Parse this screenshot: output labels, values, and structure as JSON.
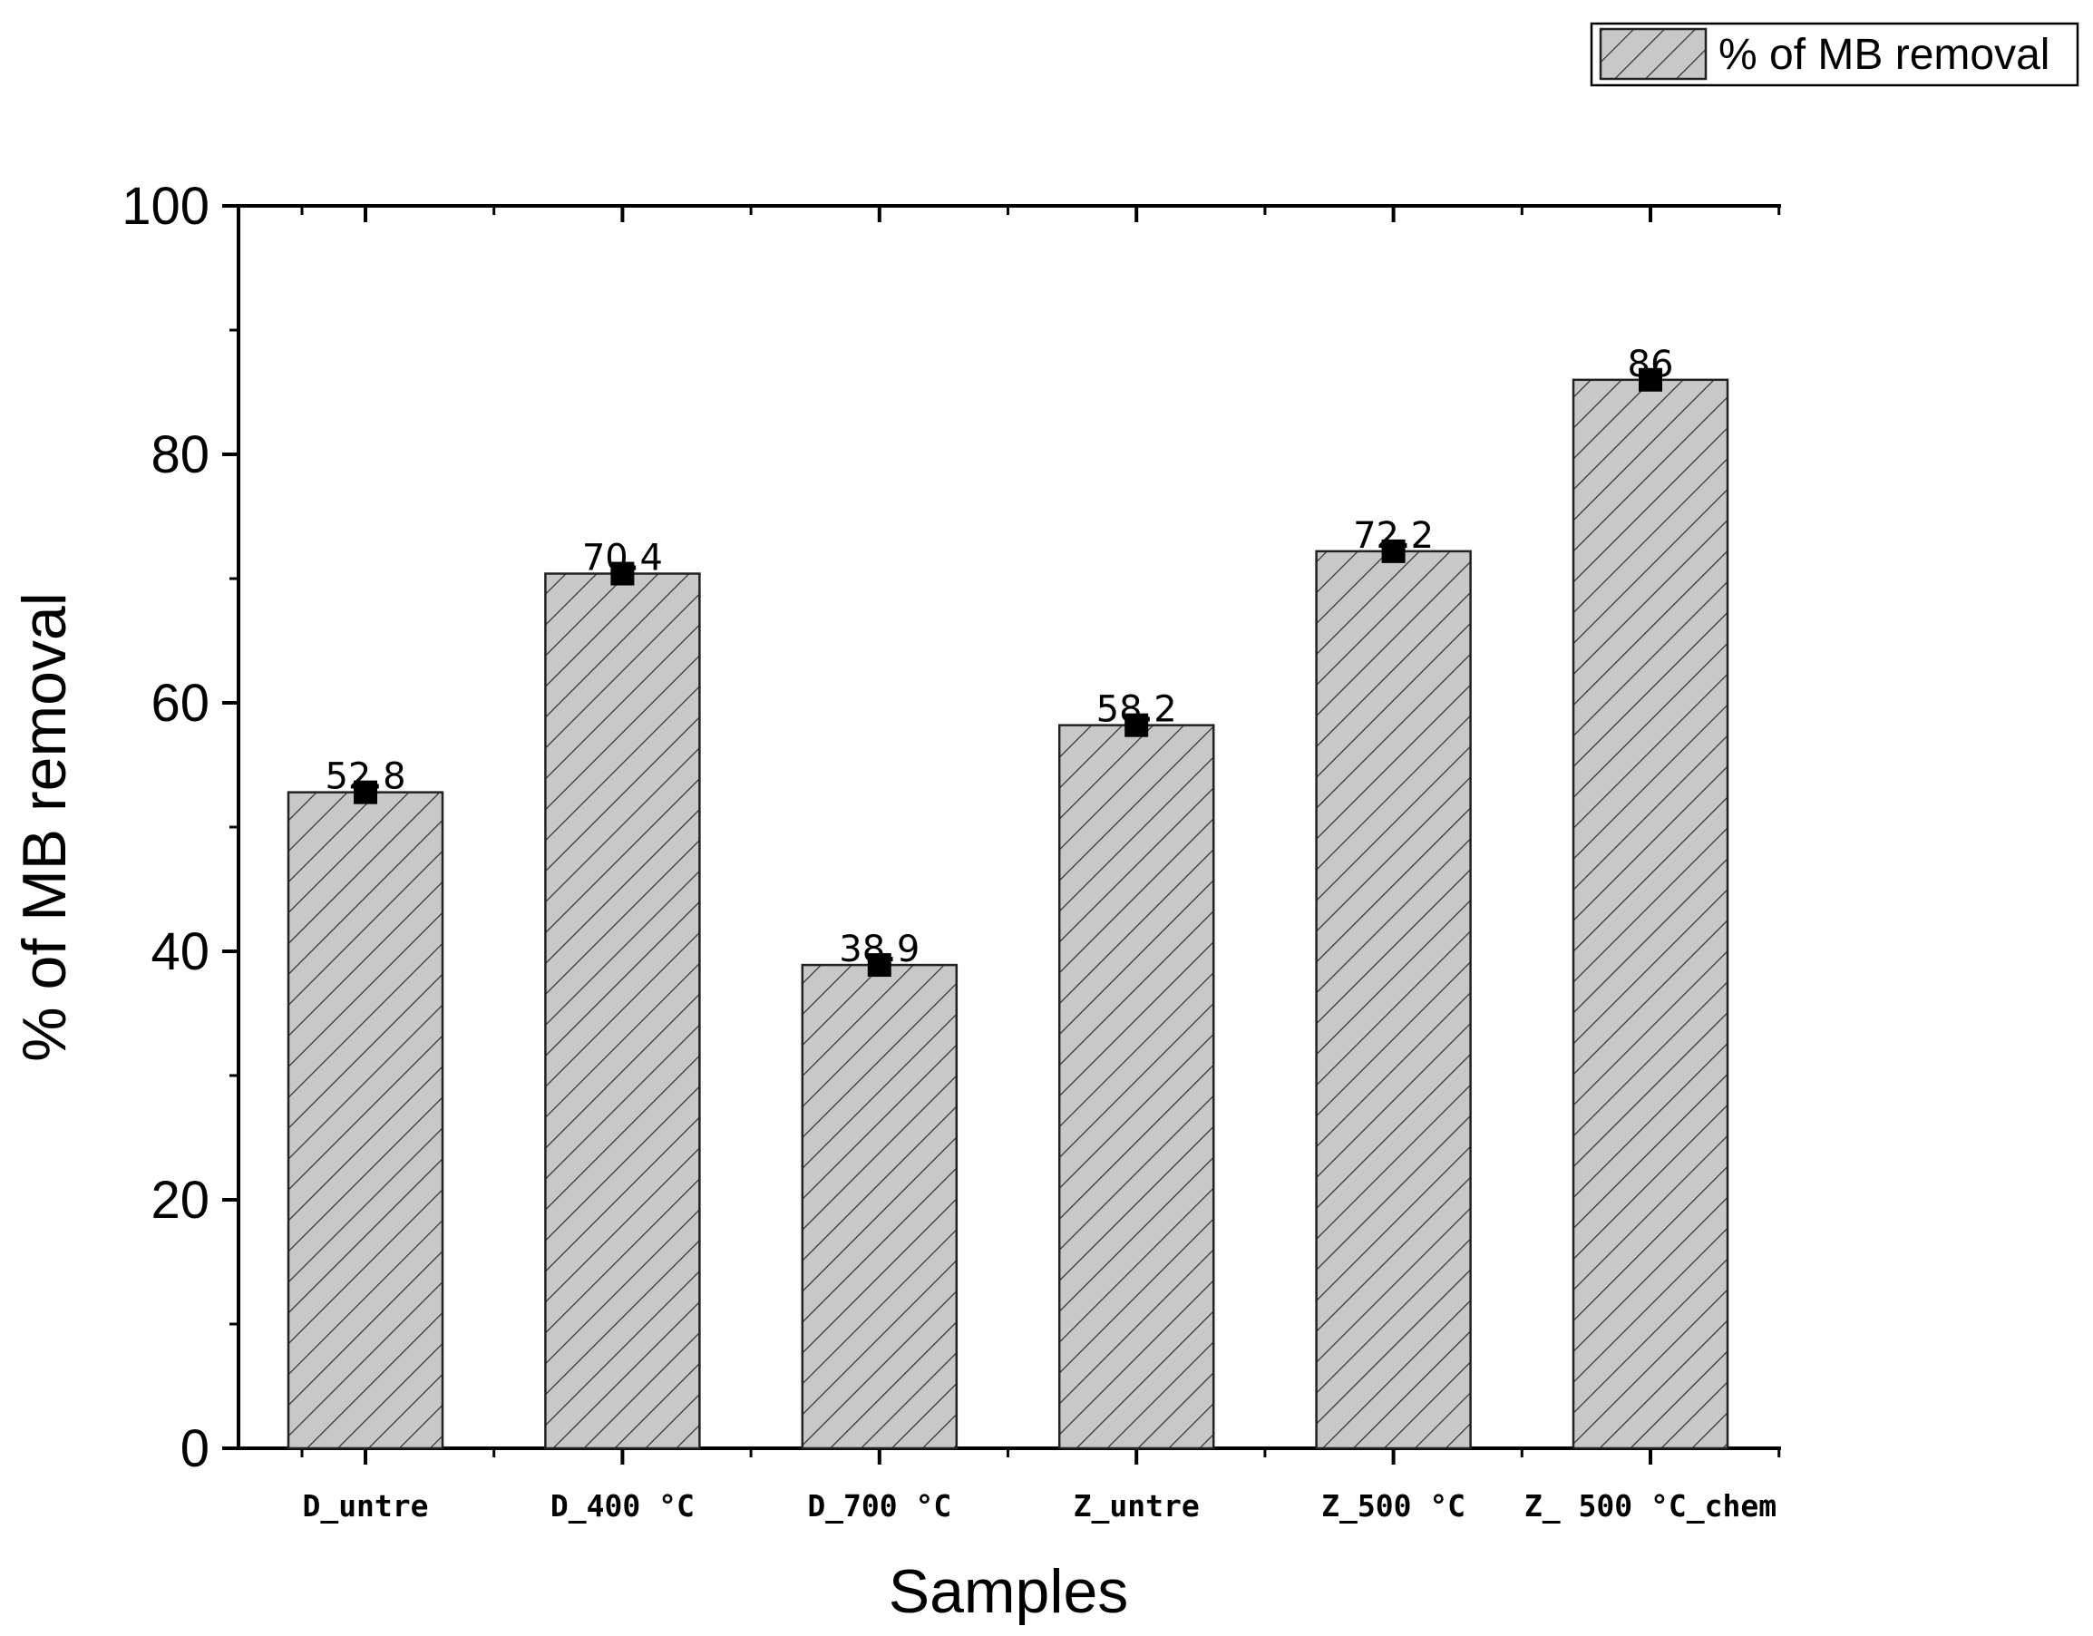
{
  "chart_data": {
    "type": "bar",
    "categories": [
      "D_untre",
      "D_400 °C",
      "D_700 °C",
      "Z_untre",
      "Z_500 °C",
      "Z_ 500 °C_chem"
    ],
    "series": [
      {
        "name": "% of MB removal",
        "values": [
          52.8,
          70.4,
          38.9,
          58.2,
          72.2,
          86
        ]
      }
    ],
    "data_labels": [
      "52.8",
      "70.4",
      "38.9",
      "58.2",
      "72.2",
      "86"
    ],
    "title": "",
    "xlabel": "Samples",
    "ylabel": "% of MB removal",
    "ylim": [
      0,
      100
    ],
    "yticks": [
      0,
      20,
      40,
      60,
      80,
      100
    ],
    "ytick_labels": [
      "0",
      "20",
      "40",
      "60",
      "80",
      "100"
    ],
    "grid": false,
    "legend": {
      "position": "top-right",
      "label": "% of MB removal"
    },
    "colors": {
      "bar_fill": "#c8c8c8",
      "bar_stroke": "#222222",
      "hatch": "#333333",
      "marker": "#000000",
      "axis": "#000000"
    }
  }
}
